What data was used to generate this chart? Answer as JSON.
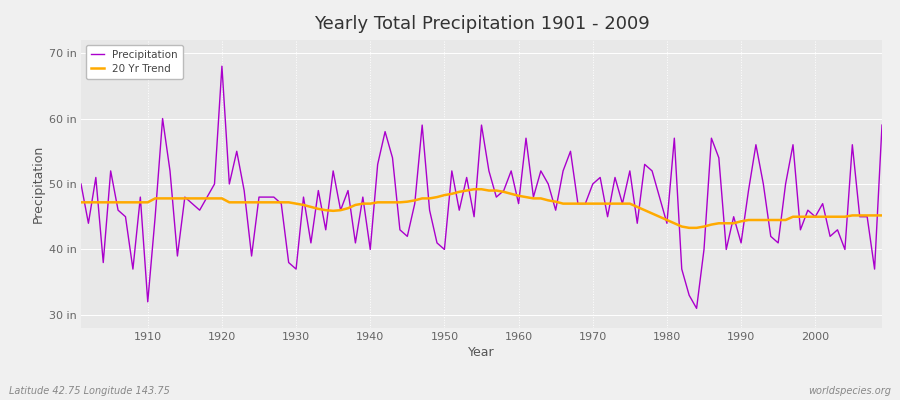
{
  "title": "Yearly Total Precipitation 1901 - 2009",
  "xlabel": "Year",
  "ylabel": "Precipitation",
  "lat_lon_label": "Latitude 42.75 Longitude 143.75",
  "credit_label": "worldspecies.org",
  "line_color": "#aa00cc",
  "trend_color": "#ffaa00",
  "bg_color": "#f0f0f0",
  "plot_bg_color": "#e8e8e8",
  "ylim": [
    28,
    72
  ],
  "yticks": [
    30,
    40,
    50,
    60,
    70
  ],
  "ytick_labels": [
    "30 in",
    "40 in",
    "50 in",
    "60 in",
    "70 in"
  ],
  "xlim": [
    1901,
    2009
  ],
  "xticks": [
    1910,
    1920,
    1930,
    1940,
    1950,
    1960,
    1970,
    1980,
    1990,
    2000
  ],
  "years": [
    1901,
    1902,
    1903,
    1904,
    1905,
    1906,
    1907,
    1908,
    1909,
    1910,
    1911,
    1912,
    1913,
    1914,
    1915,
    1916,
    1917,
    1918,
    1919,
    1920,
    1921,
    1922,
    1923,
    1924,
    1925,
    1926,
    1927,
    1928,
    1929,
    1930,
    1931,
    1932,
    1933,
    1934,
    1935,
    1936,
    1937,
    1938,
    1939,
    1940,
    1941,
    1942,
    1943,
    1944,
    1945,
    1946,
    1947,
    1948,
    1949,
    1950,
    1951,
    1952,
    1953,
    1954,
    1955,
    1956,
    1957,
    1958,
    1959,
    1960,
    1961,
    1962,
    1963,
    1964,
    1965,
    1966,
    1967,
    1968,
    1969,
    1970,
    1971,
    1972,
    1973,
    1974,
    1975,
    1976,
    1977,
    1978,
    1979,
    1980,
    1981,
    1982,
    1983,
    1984,
    1985,
    1986,
    1987,
    1988,
    1989,
    1990,
    1991,
    1992,
    1993,
    1994,
    1995,
    1996,
    1997,
    1998,
    1999,
    2000,
    2001,
    2002,
    2003,
    2004,
    2005,
    2006,
    2007,
    2008,
    2009
  ],
  "precipitation": [
    50,
    44,
    51,
    38,
    52,
    46,
    45,
    37,
    48,
    32,
    45,
    60,
    52,
    39,
    48,
    47,
    46,
    48,
    50,
    68,
    50,
    55,
    49,
    39,
    48,
    48,
    48,
    47,
    38,
    37,
    48,
    41,
    49,
    43,
    52,
    46,
    49,
    41,
    48,
    40,
    53,
    58,
    54,
    43,
    42,
    47,
    59,
    46,
    41,
    40,
    52,
    46,
    51,
    45,
    59,
    52,
    48,
    49,
    52,
    47,
    57,
    48,
    52,
    50,
    46,
    52,
    55,
    47,
    47,
    50,
    51,
    45,
    51,
    47,
    52,
    44,
    53,
    52,
    48,
    44,
    57,
    37,
    33,
    31,
    40,
    57,
    54,
    40,
    45,
    41,
    49,
    56,
    50,
    42,
    41,
    50,
    56,
    43,
    46,
    45,
    47,
    42,
    43,
    40,
    56,
    45,
    45,
    37,
    59
  ],
  "trend": [
    47.2,
    47.2,
    47.2,
    47.2,
    47.2,
    47.2,
    47.2,
    47.2,
    47.2,
    47.2,
    47.8,
    47.8,
    47.8,
    47.8,
    47.8,
    47.8,
    47.8,
    47.8,
    47.8,
    47.8,
    47.2,
    47.2,
    47.2,
    47.2,
    47.2,
    47.2,
    47.2,
    47.2,
    47.2,
    47.0,
    46.8,
    46.5,
    46.2,
    46.0,
    45.9,
    46.0,
    46.3,
    46.8,
    47.0,
    47.0,
    47.2,
    47.2,
    47.2,
    47.2,
    47.3,
    47.5,
    47.8,
    47.8,
    48.0,
    48.3,
    48.5,
    48.8,
    49.0,
    49.2,
    49.2,
    49.0,
    49.0,
    48.8,
    48.5,
    48.2,
    48.0,
    47.8,
    47.8,
    47.5,
    47.3,
    47.0,
    47.0,
    47.0,
    47.0,
    47.0,
    47.0,
    47.0,
    47.0,
    47.0,
    47.0,
    46.5,
    46.0,
    45.5,
    45.0,
    44.5,
    44.0,
    43.5,
    43.3,
    43.3,
    43.5,
    43.8,
    44.0,
    44.0,
    44.0,
    44.3,
    44.5,
    44.5,
    44.5,
    44.5,
    44.5,
    44.5,
    45.0,
    45.0,
    45.0,
    45.0,
    45.0,
    45.0,
    45.0,
    45.0,
    45.2,
    45.2,
    45.2,
    45.2,
    45.2
  ]
}
